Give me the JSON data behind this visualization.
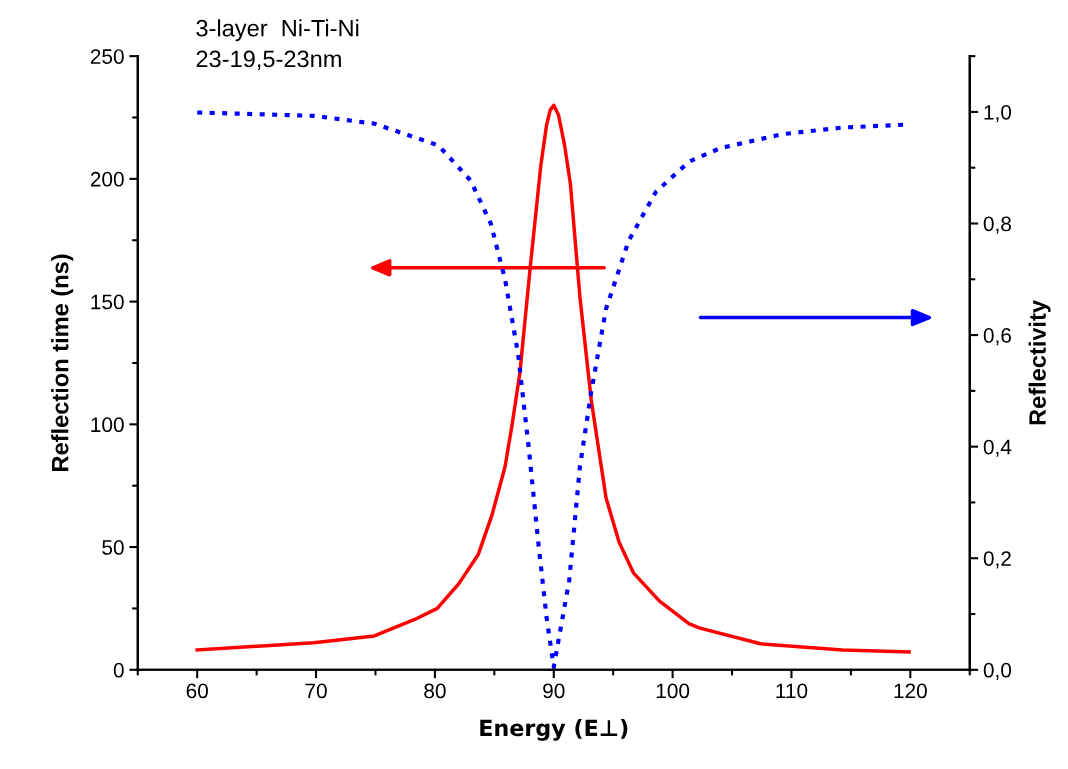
{
  "chart_data": {
    "type": "line",
    "title": "3-layer  Ni-Ti-Ni",
    "subtitle": "23-19,5-23nm",
    "xlabel": "Energy (E⊥)",
    "ylabel": "Reflection time (ns)",
    "y2label": "Reflectivity",
    "xlim": [
      55,
      125
    ],
    "xticks": [
      60,
      70,
      80,
      90,
      100,
      110,
      120
    ],
    "ylim": [
      0,
      250
    ],
    "yticks": [
      0,
      50,
      100,
      150,
      200,
      250
    ],
    "y2lim": [
      0,
      1.1
    ],
    "y2ticks": [
      {
        "value": 0,
        "label": "0,0"
      },
      {
        "value": 0.2,
        "label": "0,2"
      },
      {
        "value": 0.4,
        "label": "0,4"
      },
      {
        "value": 0.6,
        "label": "0,6"
      },
      {
        "value": 0.8,
        "label": "0,8"
      },
      {
        "value": 1.0,
        "label": "1,0"
      }
    ],
    "grid": false,
    "legend": false,
    "marker": "none",
    "series": [
      {
        "color": "#ff0000",
        "line_style": "solid",
        "x": [
          60,
          69.8,
          74.9,
          78.3,
          80.2,
          82.0,
          83.65,
          84.8,
          85.9,
          86.5,
          87.15,
          88.0,
          88.9,
          89.4,
          89.7,
          90.0,
          90.4,
          90.9,
          91.4,
          92.2,
          93.15,
          94.4,
          95.5,
          96.7,
          98.9,
          101.4,
          102.3,
          107.4,
          114.3,
          119.9
        ],
        "values": [
          8.1,
          11,
          13.8,
          20.5,
          25,
          35,
          47,
          63,
          82.7,
          100,
          121,
          163,
          205,
          222,
          228,
          230,
          226,
          214,
          198,
          152,
          110,
          70,
          52,
          39.5,
          28,
          18.7,
          17,
          10.6,
          8.1,
          7.3
        ]
      },
      {
        "color": "#0000ff",
        "line_style": "dotted",
        "axis": "y2",
        "x": [
          60,
          69.8,
          74.9,
          80.3,
          83.0,
          84.7,
          85.9,
          87.0,
          87.9,
          88.7,
          89.4,
          90.0,
          91.3,
          92.2,
          93.15,
          94.4,
          96.3,
          98.6,
          101.4,
          104,
          109.2,
          114.3,
          119.4
        ],
        "values": [
          0.999,
          0.993,
          0.979,
          0.94,
          0.877,
          0.8,
          0.7,
          0.566,
          0.397,
          0.228,
          0.093,
          0.005,
          0.16,
          0.364,
          0.498,
          0.647,
          0.769,
          0.857,
          0.911,
          0.935,
          0.96,
          0.972,
          0.977
        ]
      }
    ]
  }
}
